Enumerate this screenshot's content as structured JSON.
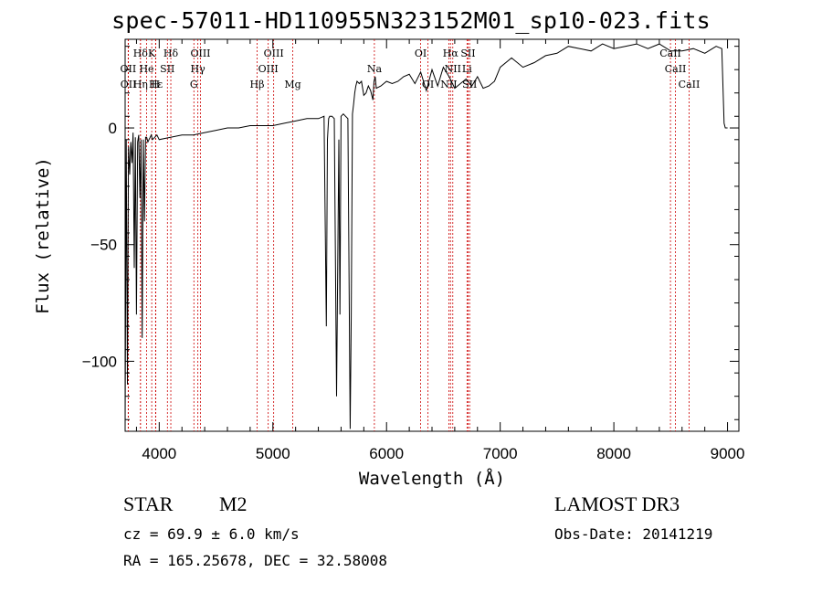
{
  "title": "spec-57011-HD110955N323152M01_sp10-023.fits",
  "info": {
    "class_label": "STAR",
    "subclass_label": "M2",
    "survey": "LAMOST DR3",
    "cz": "cz = 69.9 ± 6.0 km/s",
    "obs_date": "Obs-Date: 20141219",
    "coords": "RA = 165.25678, DEC =  32.58008"
  },
  "colors": {
    "line_marker": "#cc0000",
    "spectrum": "#000000",
    "axis": "#000000"
  },
  "chart_data": {
    "type": "line",
    "title": "spec-57011-HD110955N323152M01_sp10-023.fits",
    "xlabel": "Wavelength (Å)",
    "ylabel": "Flux (relative)",
    "xlim": [
      3700,
      9100
    ],
    "ylim": [
      -130,
      38
    ],
    "x_ticks": [
      4000,
      5000,
      6000,
      7000,
      8000,
      9000
    ],
    "x_tick_labels": [
      "4000",
      "5000",
      "6000",
      "7000",
      "8000",
      "9000"
    ],
    "y_ticks": [
      0,
      -50,
      -100
    ],
    "y_tick_labels": [
      "0",
      "−50",
      "−100"
    ],
    "series": [
      {
        "name": "spectrum",
        "x": [
          3700,
          3710,
          3720,
          3730,
          3740,
          3750,
          3760,
          3770,
          3780,
          3790,
          3800,
          3810,
          3820,
          3830,
          3840,
          3850,
          3860,
          3870,
          3880,
          3890,
          3900,
          3910,
          3920,
          3930,
          3940,
          3960,
          3980,
          4000,
          4100,
          4200,
          4300,
          4400,
          4500,
          4600,
          4700,
          4800,
          4900,
          5000,
          5100,
          5200,
          5300,
          5400,
          5450,
          5470,
          5480,
          5490,
          5500,
          5520,
          5540,
          5560,
          5580,
          5590,
          5600,
          5620,
          5640,
          5660,
          5680,
          5690,
          5700,
          5710,
          5720,
          5730,
          5740,
          5760,
          5780,
          5800,
          5820,
          5840,
          5860,
          5880,
          5890,
          5900,
          5910,
          5950,
          6000,
          6050,
          6100,
          6150,
          6200,
          6250,
          6300,
          6350,
          6400,
          6450,
          6500,
          6550,
          6600,
          6650,
          6700,
          6750,
          6800,
          6850,
          6900,
          6950,
          7000,
          7100,
          7200,
          7300,
          7400,
          7500,
          7600,
          7700,
          7800,
          7900,
          8000,
          8100,
          8200,
          8300,
          8400,
          8500,
          8600,
          8700,
          8800,
          8900,
          8950,
          8970,
          8980,
          8990,
          9000
        ],
        "y": [
          -128,
          -5,
          -110,
          -8,
          -20,
          -6,
          -15,
          -2,
          -60,
          -4,
          -80,
          -6,
          -3,
          -30,
          -5,
          -90,
          -5,
          -40,
          -4,
          -4,
          -6,
          -5,
          -4,
          -3,
          -5,
          -4,
          -3,
          -5,
          -4,
          -3,
          -3,
          -2,
          -1,
          0,
          0,
          1,
          1,
          1,
          2,
          3,
          4,
          4,
          5,
          -85,
          -5,
          4,
          5,
          5,
          4,
          -115,
          -5,
          -80,
          5,
          6,
          5,
          4,
          -129,
          -80,
          6,
          10,
          15,
          18,
          20,
          19,
          20,
          14,
          15,
          18,
          16,
          12,
          20,
          22,
          17,
          18,
          20,
          19,
          20,
          22,
          23,
          19,
          24,
          16,
          25,
          18,
          26,
          22,
          17,
          19,
          21,
          18,
          22,
          17,
          18,
          20,
          26,
          30,
          26,
          28,
          31,
          32,
          35,
          34,
          33,
          36,
          34,
          35,
          36,
          34,
          36,
          33,
          33,
          34,
          32,
          35,
          34,
          2,
          0,
          0,
          0
        ]
      }
    ],
    "line_markers": [
      {
        "label": "Hδ",
        "x": 3835,
        "row": 1
      },
      {
        "label": "K",
        "x": 3934,
        "row": 1
      },
      {
        "label": "Hδ",
        "x": 4102,
        "row": 1
      },
      {
        "label": "OIII",
        "x": 4363,
        "row": 1
      },
      {
        "label": "OIII",
        "x": 5007,
        "row": 1
      },
      {
        "label": "OI",
        "x": 6300,
        "row": 1
      },
      {
        "label": "Hα",
        "x": 6563,
        "row": 1
      },
      {
        "label": "SII",
        "x": 6717,
        "row": 1
      },
      {
        "label": "CaII",
        "x": 8498,
        "row": 1
      },
      {
        "label": "OII",
        "x": 3727,
        "row": 2
      },
      {
        "label": "He",
        "x": 3889,
        "row": 2
      },
      {
        "label": "SII",
        "x": 4072,
        "row": 2
      },
      {
        "label": "Hγ",
        "x": 4340,
        "row": 2
      },
      {
        "label": "OIII",
        "x": 4959,
        "row": 2
      },
      {
        "label": "Na",
        "x": 5893,
        "row": 2
      },
      {
        "label": "NII",
        "x": 6583,
        "row": 2
      },
      {
        "label": "Li",
        "x": 6708,
        "row": 2
      },
      {
        "label": "CaII",
        "x": 8542,
        "row": 2
      },
      {
        "label": "OII",
        "x": 3729,
        "row": 3
      },
      {
        "label": "Hε",
        "x": 3970,
        "row": 3
      },
      {
        "label": "Hη",
        "x": 3835,
        "row": 3
      },
      {
        "label": "H",
        "x": 3968,
        "row": 3
      },
      {
        "label": "G",
        "x": 4305,
        "row": 3
      },
      {
        "label": "Hβ",
        "x": 4861,
        "row": 3
      },
      {
        "label": "Mg",
        "x": 5175,
        "row": 3
      },
      {
        "label": "OI",
        "x": 6364,
        "row": 3
      },
      {
        "label": "NII",
        "x": 6548,
        "row": 3
      },
      {
        "label": "SII",
        "x": 6731,
        "row": 3
      },
      {
        "label": "CaII",
        "x": 8662,
        "row": 3
      }
    ]
  }
}
